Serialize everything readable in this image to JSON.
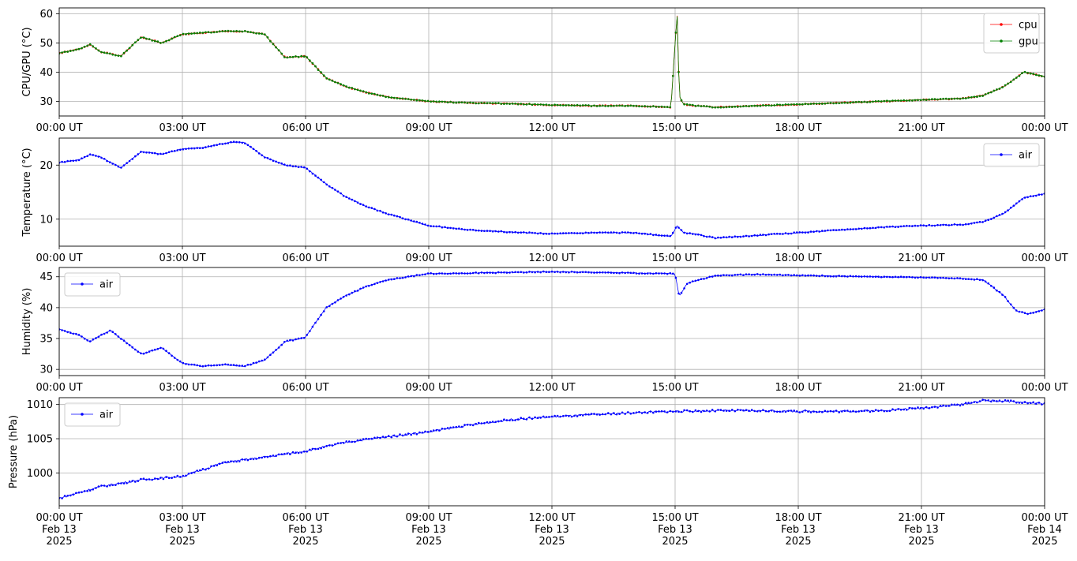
{
  "chart_data": [
    {
      "type": "line",
      "ylabel": "CPU/GPU (°C)",
      "ylim": [
        25,
        62
      ],
      "yticks": [
        30,
        40,
        50,
        60
      ],
      "xlim": [
        "00:00 UT",
        "00:00 UT"
      ],
      "xticks": [
        "00:00 UT",
        "03:00 UT",
        "06:00 UT",
        "09:00 UT",
        "12:00 UT",
        "15:00 UT",
        "18:00 UT",
        "21:00 UT",
        "00:00 UT"
      ],
      "grid": true,
      "legend": "top-right",
      "x_hours": [
        0,
        0.5,
        0.75,
        1.0,
        1.5,
        2.0,
        2.5,
        3.0,
        3.5,
        4.0,
        4.5,
        5.0,
        5.5,
        6.0,
        6.5,
        7.0,
        7.5,
        8.0,
        9.0,
        10.0,
        11.0,
        12.0,
        13.0,
        14.0,
        14.9,
        15.0,
        15.05,
        15.1,
        15.2,
        15.5,
        16.0,
        17.0,
        18.0,
        19.0,
        20.0,
        21.0,
        22.0,
        22.5,
        23.0,
        23.5,
        24.0
      ],
      "series": [
        {
          "name": "cpu",
          "color": "#ff0000",
          "values": [
            46.5,
            48,
            49.5,
            47,
            45.5,
            52,
            50,
            53,
            53.5,
            54,
            54,
            53,
            45,
            45.5,
            38,
            35,
            33,
            31.5,
            30,
            29.5,
            29.2,
            28.8,
            28.5,
            28.5,
            28,
            50,
            60,
            32,
            29,
            28.5,
            28,
            28.5,
            29,
            29.5,
            30,
            30.5,
            31,
            32,
            35,
            40,
            38.5
          ]
        },
        {
          "name": "gpu",
          "color": "#008000",
          "values": [
            46.5,
            48,
            49.5,
            47,
            45.5,
            52,
            50,
            53,
            53.5,
            54,
            54,
            53,
            45,
            45.5,
            38,
            35,
            33,
            31.5,
            30,
            29.5,
            29.2,
            28.8,
            28.5,
            28.5,
            28,
            50,
            60,
            32,
            29,
            28.5,
            28,
            28.5,
            29,
            29.5,
            30,
            30.5,
            31,
            32,
            35,
            40,
            38.5
          ]
        }
      ]
    },
    {
      "type": "line",
      "ylabel": "Temperature (°C)",
      "ylim": [
        5,
        25
      ],
      "yticks": [
        10,
        20
      ],
      "xticks": [
        "00:00 UT",
        "03:00 UT",
        "06:00 UT",
        "09:00 UT",
        "12:00 UT",
        "15:00 UT",
        "18:00 UT",
        "21:00 UT",
        "00:00 UT"
      ],
      "grid": true,
      "legend": "top-right",
      "x_hours": [
        0,
        0.5,
        0.75,
        1.0,
        1.25,
        1.5,
        2.0,
        2.5,
        3.0,
        3.5,
        4.0,
        4.25,
        4.5,
        5.0,
        5.5,
        6.0,
        6.5,
        7.0,
        7.5,
        8.0,
        9.0,
        10.0,
        11.0,
        12.0,
        13.0,
        14.0,
        14.9,
        15.05,
        15.2,
        15.5,
        16.0,
        17.0,
        18.0,
        19.0,
        20.0,
        21.0,
        22.0,
        22.5,
        23.0,
        23.5,
        24.0
      ],
      "series": [
        {
          "name": "air",
          "color": "#0000ff",
          "values": [
            20.5,
            21,
            22,
            21.5,
            20.5,
            19.5,
            22.5,
            22,
            23,
            23.2,
            24,
            24.3,
            24.2,
            21.5,
            20,
            19.5,
            16.5,
            14,
            12.3,
            11,
            8.8,
            8,
            7.6,
            7.3,
            7.5,
            7.5,
            6.8,
            8.8,
            7.5,
            7.2,
            6.5,
            7,
            7.5,
            8,
            8.5,
            8.8,
            9,
            9.5,
            11,
            14,
            14.7
          ]
        }
      ]
    },
    {
      "type": "line",
      "ylabel": "Humidity (%)",
      "ylim": [
        29,
        46.5
      ],
      "yticks": [
        30,
        35,
        40,
        45
      ],
      "xticks": [
        "00:00 UT",
        "03:00 UT",
        "06:00 UT",
        "09:00 UT",
        "12:00 UT",
        "15:00 UT",
        "18:00 UT",
        "21:00 UT",
        "00:00 UT"
      ],
      "grid": true,
      "legend": "top-left",
      "x_hours": [
        0,
        0.5,
        0.75,
        1.0,
        1.25,
        1.5,
        2.0,
        2.5,
        3.0,
        3.5,
        4.0,
        4.5,
        5.0,
        5.5,
        6.0,
        6.5,
        7.0,
        7.5,
        8.0,
        9.0,
        10.0,
        11.0,
        12.0,
        13.0,
        14.0,
        15.0,
        15.1,
        15.3,
        16.0,
        17.0,
        18.0,
        19.0,
        20.0,
        21.0,
        22.0,
        22.5,
        23.0,
        23.3,
        23.6,
        24.0
      ],
      "series": [
        {
          "name": "air",
          "color": "#0000ff",
          "values": [
            36.5,
            35.5,
            34.5,
            35.5,
            36.3,
            35,
            32.5,
            33.5,
            31,
            30.5,
            30.8,
            30.5,
            31.5,
            34.5,
            35.2,
            40,
            42,
            43.5,
            44.5,
            45.5,
            45.6,
            45.7,
            45.8,
            45.7,
            45.6,
            45.5,
            41.8,
            44,
            45.2,
            45.4,
            45.2,
            45.1,
            45,
            44.9,
            44.7,
            44.5,
            42,
            39.5,
            39,
            39.7
          ]
        }
      ]
    },
    {
      "type": "line",
      "ylabel": "Pressure (hPa)",
      "ylim": [
        995.2,
        1011
      ],
      "yticks": [
        1000,
        1005,
        1010
      ],
      "xticks": [
        "00:00 UT\nFeb 13\n2025",
        "03:00 UT\nFeb 13\n2025",
        "06:00 UT\nFeb 13\n2025",
        "09:00 UT\nFeb 13\n2025",
        "12:00 UT\nFeb 13\n2025",
        "15:00 UT\nFeb 13\n2025",
        "18:00 UT\nFeb 13\n2025",
        "21:00 UT\nFeb 13\n2025",
        "00:00 UT\nFeb 14\n2025"
      ],
      "grid": true,
      "legend": "top-left",
      "x_hours": [
        0,
        1.0,
        2.0,
        3.0,
        4.0,
        5.0,
        6.0,
        7.0,
        8.0,
        9.0,
        10.0,
        11.0,
        12.0,
        13.0,
        14.0,
        15.0,
        16.0,
        17.0,
        18.0,
        19.0,
        20.0,
        21.0,
        22.0,
        22.5,
        23.0,
        24.0
      ],
      "series": [
        {
          "name": "air",
          "color": "#0000ff",
          "values": [
            996.3,
            998,
            999,
            999.5,
            1001.5,
            1002.3,
            1003.2,
            1004.5,
            1005.3,
            1006,
            1007,
            1007.8,
            1008.2,
            1008.5,
            1008.8,
            1009,
            1009.1,
            1009.1,
            1009,
            1009,
            1009.1,
            1009.5,
            1010,
            1010.6,
            1010.5,
            1010.1
          ]
        }
      ]
    }
  ]
}
